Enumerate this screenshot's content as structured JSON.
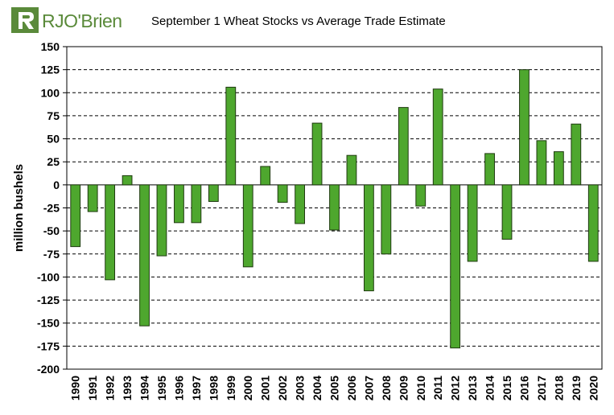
{
  "logo": {
    "text": "RJO'Brien"
  },
  "chart_data": {
    "type": "bar",
    "title": "September 1 Wheat Stocks vs Average Trade Estimate",
    "xlabel": "",
    "ylabel": "million bushels",
    "ylim": [
      -200,
      150
    ],
    "yticks": [
      150,
      125,
      100,
      75,
      50,
      25,
      0,
      -25,
      -50,
      -75,
      -100,
      -125,
      -150,
      -175,
      -200
    ],
    "grid": true,
    "bar_color": "#4ea72e",
    "bar_border": "#1f3a10",
    "categories": [
      "1990",
      "1991",
      "1992",
      "1993",
      "1994",
      "1995",
      "1996",
      "1997",
      "1998",
      "1999",
      "2000",
      "2001",
      "2002",
      "2003",
      "2004",
      "2005",
      "2006",
      "2007",
      "2008",
      "2009",
      "2010",
      "2011",
      "2012",
      "2013",
      "2014",
      "2015",
      "2016",
      "2017",
      "2018",
      "2019",
      "2020"
    ],
    "values": [
      -67,
      -29,
      -103,
      10,
      -153,
      -77,
      -41,
      -41,
      -18,
      106,
      -89,
      20,
      -19,
      -42,
      67,
      -49,
      32,
      -115,
      -75,
      84,
      -23,
      104,
      -177,
      -83,
      34,
      -59,
      125,
      48,
      36,
      66,
      -83
    ]
  }
}
